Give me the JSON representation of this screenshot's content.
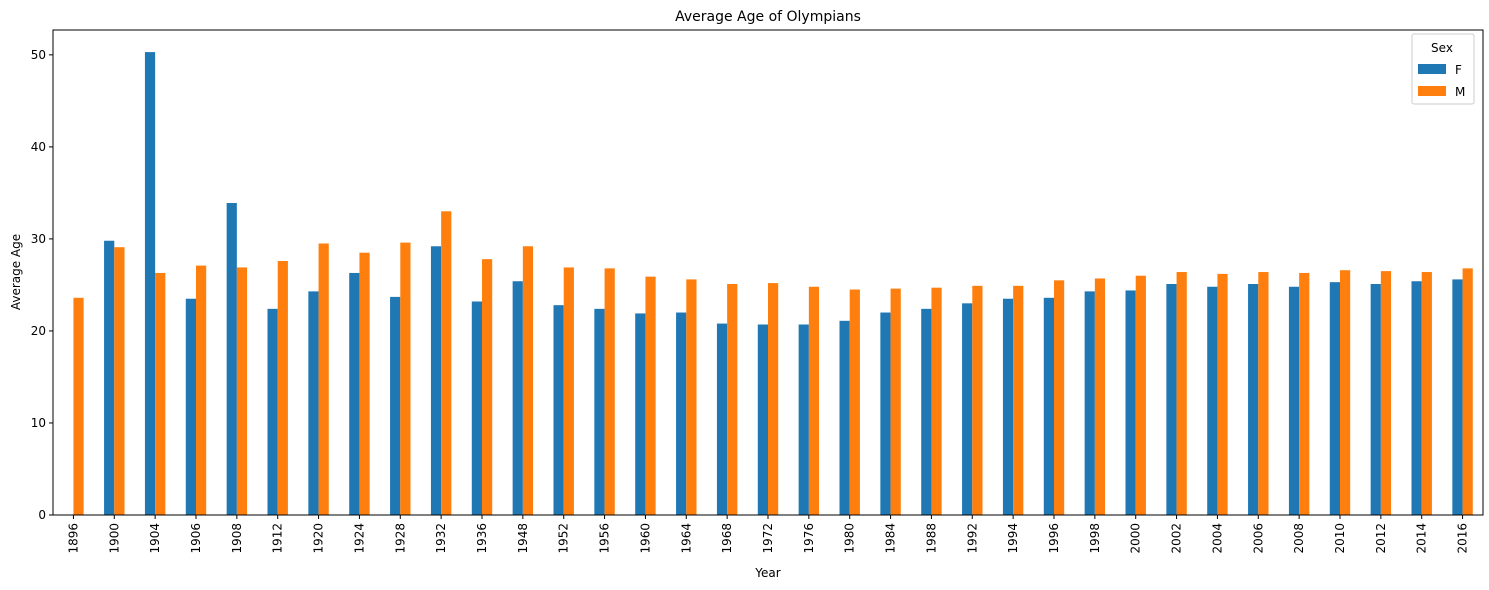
{
  "chart_data": {
    "type": "bar",
    "title": "Average Age of Olympians",
    "xlabel": "Year",
    "ylabel": "Average Age",
    "ylim": [
      0,
      52.7
    ],
    "yticks": [
      0,
      10,
      20,
      30,
      40,
      50
    ],
    "grid": false,
    "legend": {
      "title": "Sex",
      "position": "top-right"
    },
    "categories": [
      "1896",
      "1900",
      "1904",
      "1906",
      "1908",
      "1912",
      "1920",
      "1924",
      "1928",
      "1932",
      "1936",
      "1948",
      "1952",
      "1956",
      "1960",
      "1964",
      "1968",
      "1972",
      "1976",
      "1980",
      "1984",
      "1988",
      "1992",
      "1994",
      "1996",
      "1998",
      "2000",
      "2002",
      "2004",
      "2006",
      "2008",
      "2010",
      "2012",
      "2014",
      "2016"
    ],
    "series": [
      {
        "name": "F",
        "color": "#1f77b4",
        "values": [
          null,
          29.8,
          50.3,
          23.5,
          33.9,
          22.4,
          24.3,
          26.3,
          23.7,
          29.2,
          23.2,
          25.4,
          22.8,
          22.4,
          21.9,
          22.0,
          20.8,
          20.7,
          20.7,
          21.1,
          22.0,
          22.4,
          23.0,
          23.5,
          23.6,
          24.3,
          24.4,
          25.1,
          24.8,
          25.1,
          24.8,
          25.3,
          25.1,
          25.4,
          25.6
        ]
      },
      {
        "name": "M",
        "color": "#ff7f0e",
        "values": [
          23.6,
          29.1,
          26.3,
          27.1,
          26.9,
          27.6,
          29.5,
          28.5,
          29.6,
          33.0,
          27.8,
          29.2,
          26.9,
          26.8,
          25.9,
          25.6,
          25.1,
          25.2,
          24.8,
          24.5,
          24.6,
          24.7,
          24.9,
          24.9,
          25.5,
          25.7,
          26.0,
          26.4,
          26.2,
          26.4,
          26.3,
          26.6,
          26.5,
          26.4,
          26.8
        ]
      }
    ]
  }
}
